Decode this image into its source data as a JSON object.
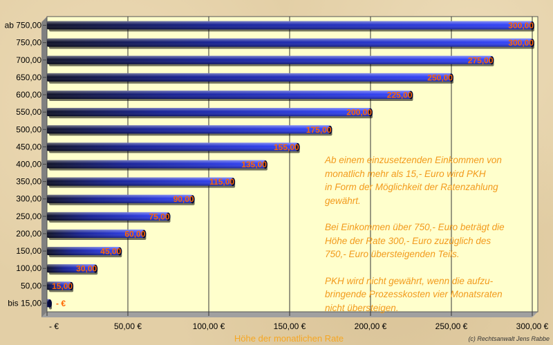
{
  "chart_data": {
    "type": "bar",
    "orientation": "horizontal",
    "categories": [
      "ab 750,00",
      "750,00",
      "700,00",
      "650,00",
      "600,00",
      "550,00",
      "500,00",
      "450,00",
      "400,00",
      "350,00",
      "300,00",
      "250,00",
      "200,00",
      "150,00",
      "100,00",
      "50,00",
      "bis 15,00"
    ],
    "values": [
      300,
      300,
      275,
      250,
      225,
      200,
      175,
      155,
      135,
      115,
      90,
      75,
      60,
      45,
      30,
      15,
      0
    ],
    "value_labels": [
      "300,00",
      "300,00",
      "275,00",
      "250,00",
      "225,00",
      "200,00",
      "175,00",
      "155,00",
      "135,00",
      "115,00",
      "90,00",
      "75,00",
      "60,00",
      "45,00",
      "30,00",
      "15,00",
      "- €"
    ],
    "xlim": [
      0,
      300
    ],
    "x_ticks": [
      0,
      50,
      100,
      150,
      200,
      250,
      300
    ],
    "x_tick_labels": [
      "-     €",
      "50,00 €",
      "100,00 €",
      "150,00 €",
      "200,00 €",
      "250,00 €",
      "300,00 €"
    ],
    "xlabel": "Höhe der monatlichen Rate",
    "grid": true,
    "colors": {
      "bar": "#1a2fd8",
      "bar_dark": "#050a3a",
      "value_label": "#ff6600",
      "plot_bg": "#ffffcc"
    }
  },
  "annotation": {
    "paragraphs": [
      "Ab einem einzusetzenden Einkommen von\nmonatlich mehr als 15,- Euro wird PKH\nin Form der Möglichkeit der Ratenzahlung\ngewährt.",
      "Bei Einkommen über 750,- Euro beträgt die\nHöhe der Rate 300,- Euro zuzüglich des\n750,- Euro übersteigenden Teils.",
      "PKH wird nicht gewährt, wenn die aufzu-\nbringende Prozesskosten vier Monatsraten\nnicht übersteigen."
    ]
  },
  "credit": "(c) Rechtsanwalt Jens Rabbe"
}
